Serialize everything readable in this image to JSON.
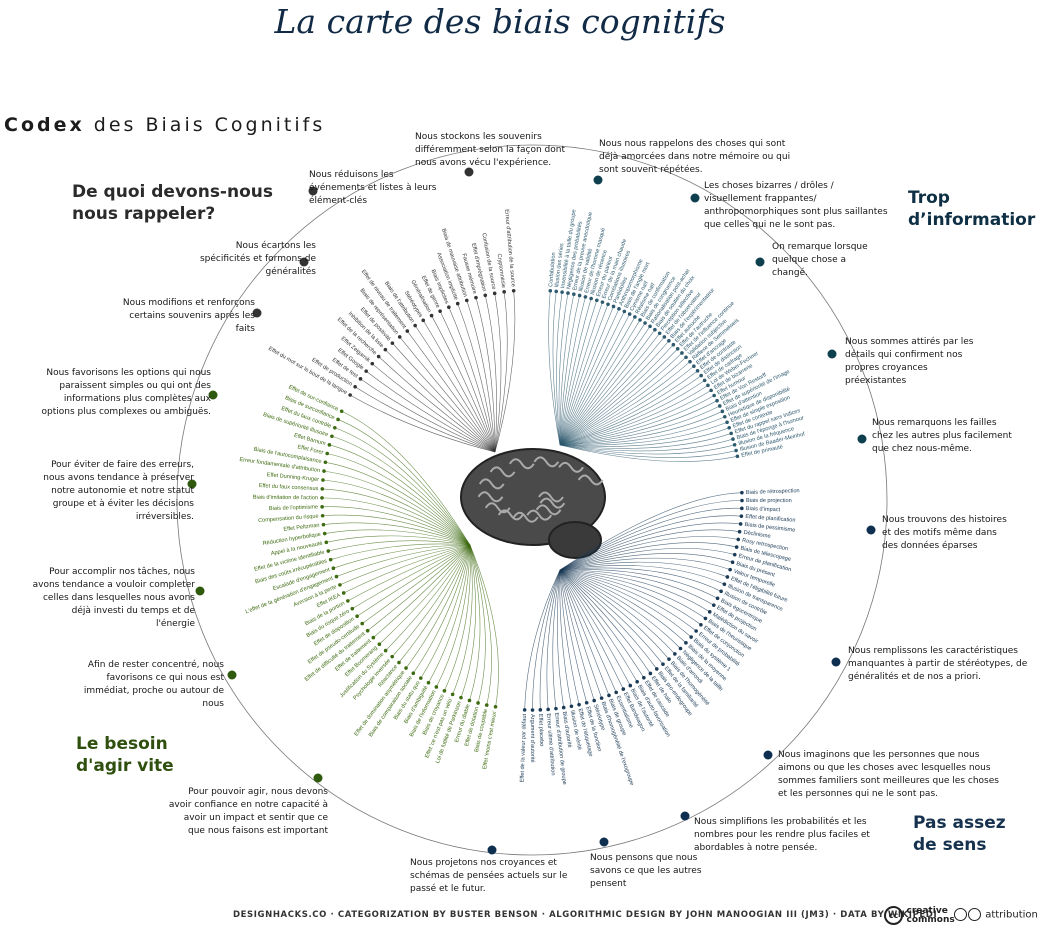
{
  "title": "La carte des biais cognitifs",
  "codex": {
    "bold": "Codex",
    "rest": "des Biais Cognitifs"
  },
  "quadrants": {
    "memory": {
      "label": "De quoi devons-nous\nnous rappeler?",
      "color": "#2b2b2b"
    },
    "info": {
      "label": "Trop\nd’informatior",
      "color": "#0e2f44"
    },
    "action": {
      "label": "Le besoin\nd'agir vite",
      "color": "#2f4f0e"
    },
    "meaning": {
      "label": "Pas assez\nde sens",
      "color": "#16324f"
    }
  },
  "notes": [
    {
      "id": "n1",
      "group": "memory",
      "text": "Nous stockons les souvenirs différemment selon la façon dont nous avons vécu l'expérience."
    },
    {
      "id": "n2",
      "group": "memory",
      "text": "Nous réduisons les événements et listes à leurs élément-clés"
    },
    {
      "id": "n3",
      "group": "memory",
      "text": "Nous écartons les spécificités et formons de généralités"
    },
    {
      "id": "n4",
      "group": "memory",
      "text": "Nous modifions et renforçons certains souvenirs après les faits"
    },
    {
      "id": "n5",
      "group": "info",
      "text": "Nous nous rappelons des choses qui sont déjà amorcées dans notre mémoire ou qui sont souvent répétées."
    },
    {
      "id": "n6",
      "group": "info",
      "text": "Les choses bizarres / drôles / visuellement frappantes/ anthropomorphiques sont plus saillantes que celles qui ne le sont pas."
    },
    {
      "id": "n7",
      "group": "info",
      "text": "On remarque lorsque quelque chose a changé."
    },
    {
      "id": "n8",
      "group": "info",
      "text": "Nous sommes attirés par les détails qui confirment nos propres croyances préexistantes"
    },
    {
      "id": "n9",
      "group": "info",
      "text": "Nous remarquons les failles chez les autres plus facilement que chez nous-même."
    },
    {
      "id": "n10",
      "group": "meaning",
      "text": "Nous trouvons des histoires et des motifs même dans des données éparses"
    },
    {
      "id": "n11",
      "group": "meaning",
      "text": "Nous remplissons les caractéristiques manquantes à partir de stéréotypes, de généralités et de nos a priori."
    },
    {
      "id": "n12",
      "group": "meaning",
      "text": "Nous imaginons que les personnes que nous aimons ou que les choses avec lesquelles nous sommes familiers sont meilleures que les choses et les personnes qui ne le sont pas."
    },
    {
      "id": "n13",
      "group": "meaning",
      "text": "Nous simplifions les probabilités et les nombres pour les rendre plus faciles et abordables à notre pensée."
    },
    {
      "id": "n14",
      "group": "meaning",
      "text": "Nous pensons que nous savons ce que les autres pensent"
    },
    {
      "id": "n15",
      "group": "meaning",
      "text": "Nous projetons nos croyances et schémas de pensées actuels sur le passé et le futur."
    },
    {
      "id": "n16",
      "group": "action",
      "text": "Nous favorisons les options qui nous paraissent simples ou qui ont des informations plus complètes aux options plus complexes ou ambiguës."
    },
    {
      "id": "n17",
      "group": "action",
      "text": "Pour éviter de faire des erreurs, nous avons tendance à préserver notre autonomie et notre statut groupe et à éviter les décisions irréversibles."
    },
    {
      "id": "n18",
      "group": "action",
      "text": "Pour accomplir nos tâches, nous avons tendance a vouloir completer celles dans lesquelles nous avons déjà investi du temps et de l'énergie"
    },
    {
      "id": "n19",
      "group": "action",
      "text": "Afin de rester concentré, nous favorisons ce qui nous est immédiat, proche ou autour de nous"
    },
    {
      "id": "n20",
      "group": "action",
      "text": "Pour pouvoir agir, nous devons avoir confiance en notre capacité à avoir un impact et sentir que ce que nous faisons est important"
    }
  ],
  "biases": {
    "info": [
      "Confabulation",
      "Illusion des séries",
      "Insensibilité à la taille du groupe",
      "Négligence des probabilités",
      "Erreur de la preuve anecdotique",
      "Illusion de validité",
      "Erreur de l'homme masqué",
      "Illusion de récence",
      "Erreur du parieur",
      "Erreur de la main chaude",
      "Corrélations illusoires",
      "Paréidolies",
      "Anthropomorphisme",
      "Biais de l'angle mort",
      "Cynisme naïf",
      "Réalisme naïf",
      "Biais de confirmation",
      "Biais de congruence",
      "Rationalisation post-achat",
      "Biais de soutien du choix",
      "Perception sélective",
      "Effet de l'observateur",
      "Biais de l'expérimentateur",
      "Effet autruche",
      "Effet de l'autruche",
      "Effet de l'influence continue",
      "Validation subjective",
      "Réflexe de Semmelweis",
      "Effet d'ancrage",
      "Effet de contraste",
      "Effet de distinction",
      "Effet de cadrage",
      "Loi de Weber-Fechner",
      "Effet de bizarrerie",
      "Effet humour",
      "Effet de Von Restorff",
      "Effet de supériorité de l'image",
      "Biais d'attention",
      "Heuristique de disponibilité",
      "Effet de simple exposition",
      "Effet de contexte",
      "Effet du rappel sans indices",
      "Biais de l'éponge à l'humour",
      "Illusion de la fréquence",
      "Illusion de Baader-Meinhof",
      "Effet de primauté"
    ],
    "memory": [
      "Effet du mot sur le bout de la langue",
      "Effet de production",
      "Effet de test",
      "Effet Google",
      "Effet Zeigarnik",
      "Effet de la recherche",
      "Inhibition de la liste",
      "Effet de positivité",
      "Biais de représentation",
      "Effet de niveau de traitement",
      "Biais de l'attribution",
      "Stéréotypes",
      "Généralisation",
      "Effet de genre",
      "Biais implicites",
      "Association implicite",
      "Biais de mauvaise attribution",
      "Fausse mémoire",
      "Effet d'imprégnation",
      "Confusion de la source",
      "Cryptomnésie",
      "Erreur d'attribution de la source"
    ],
    "action": [
      "Effet 'moins c'est mieux'",
      "Biais de coupable",
      "Effet de dotation",
      "Erreur du diable",
      "Loi de futilité de Parkinson",
      "Effet 'ce n'est pas un vélo'",
      "Biais de croyance",
      "Biais de l'information",
      "Biais d'ambiguïté",
      "Biais du statu quo",
      "Biais de comparaison sociale",
      "Effet de domination asymétrique",
      "Réactance",
      "Psychologie inversée",
      "Justification du Système",
      "Effet Boomerang",
      "Effet de traitement",
      "Effet de difficulté du traitement",
      "Effet de pseudo-certitude",
      "Effet de disposition",
      "Biais du risque zéro",
      "Biais de la portion",
      "Effet IKEA",
      "Aversion à la perte",
      "L'effet de la génération d'engagement",
      "Escalade d'engagement",
      "Biais des coûts irrécupérables",
      "Effet de la victime identifiable",
      "Appel à la nouveauté",
      "Réduction hyperbolique",
      "Effet Peltzman",
      "Compensation du risque",
      "Biais de l'optimisme",
      "Biais d'imitation de l'action",
      "Effet du faux consensus",
      "Effet Dunning-Kruger",
      "Erreur fondamentale d'attribution",
      "Biais de l'autocomplaisance",
      "Effet Forer",
      "Effet Barnum",
      "Biais de supériorité illusoire",
      "Effet du faux contrôle",
      "Biais de surconfiance",
      "Effet de sur-confiance"
    ],
    "meaning": [
      "Biais de rétrospection",
      "Biais de projection",
      "Biais d'impact",
      "Effet de planification",
      "Biais de pessimisme",
      "Déclinisme",
      "Rosy retrospection",
      "Biais de télescopage",
      "Erreur de planification",
      "Biais du présent",
      "Valeur temporelle",
      "Effet de l'éligibilité future",
      "Illusion de transparence",
      "Illusion de contrôle",
      "Biais égocentrique",
      "Effet de projection",
      "Malédiction du savoir",
      "Biais de l'heuristique",
      "Effet de conjonction",
      "Erreur de probabilité",
      "Biais du système 1",
      "Biais de la moyenne",
      "Négligence de la taille",
      "Biais d'arrondi",
      "Biais de l'homogénéité",
      "Effet de la familiarité",
      "Biais pro-endogroupe",
      "Effet de halo",
      "Effet de cascade",
      "Biais d'auto-favorisation",
      "Biais de l'autorité",
      "Effet Bandwagon",
      "Essentialisme",
      "Biais de groupe",
      "Biais d'homogénéité de l'exogroupe",
      "Stéréotype",
      "Effet de la fonction",
      "Effet de l'étiquetage",
      "Illusion de vérité",
      "Biais d'autorité",
      "Erreur d'attribution de groupe",
      "Erreur ultime d'attribution",
      "Effet placebo",
      "Argument d'autorité",
      "Effet de la valeur par défaut"
    ]
  },
  "footer": "DESIGNHACKS.CO · CATEGORIZATION BY BUSTER BENSON · ALGORITHMIC DESIGN BY JOHN MANOOGIAN III (JM3) · DATA BY WIKIPEDI",
  "license": {
    "cc": "creative\ncommons",
    "attribution": "attribution"
  }
}
